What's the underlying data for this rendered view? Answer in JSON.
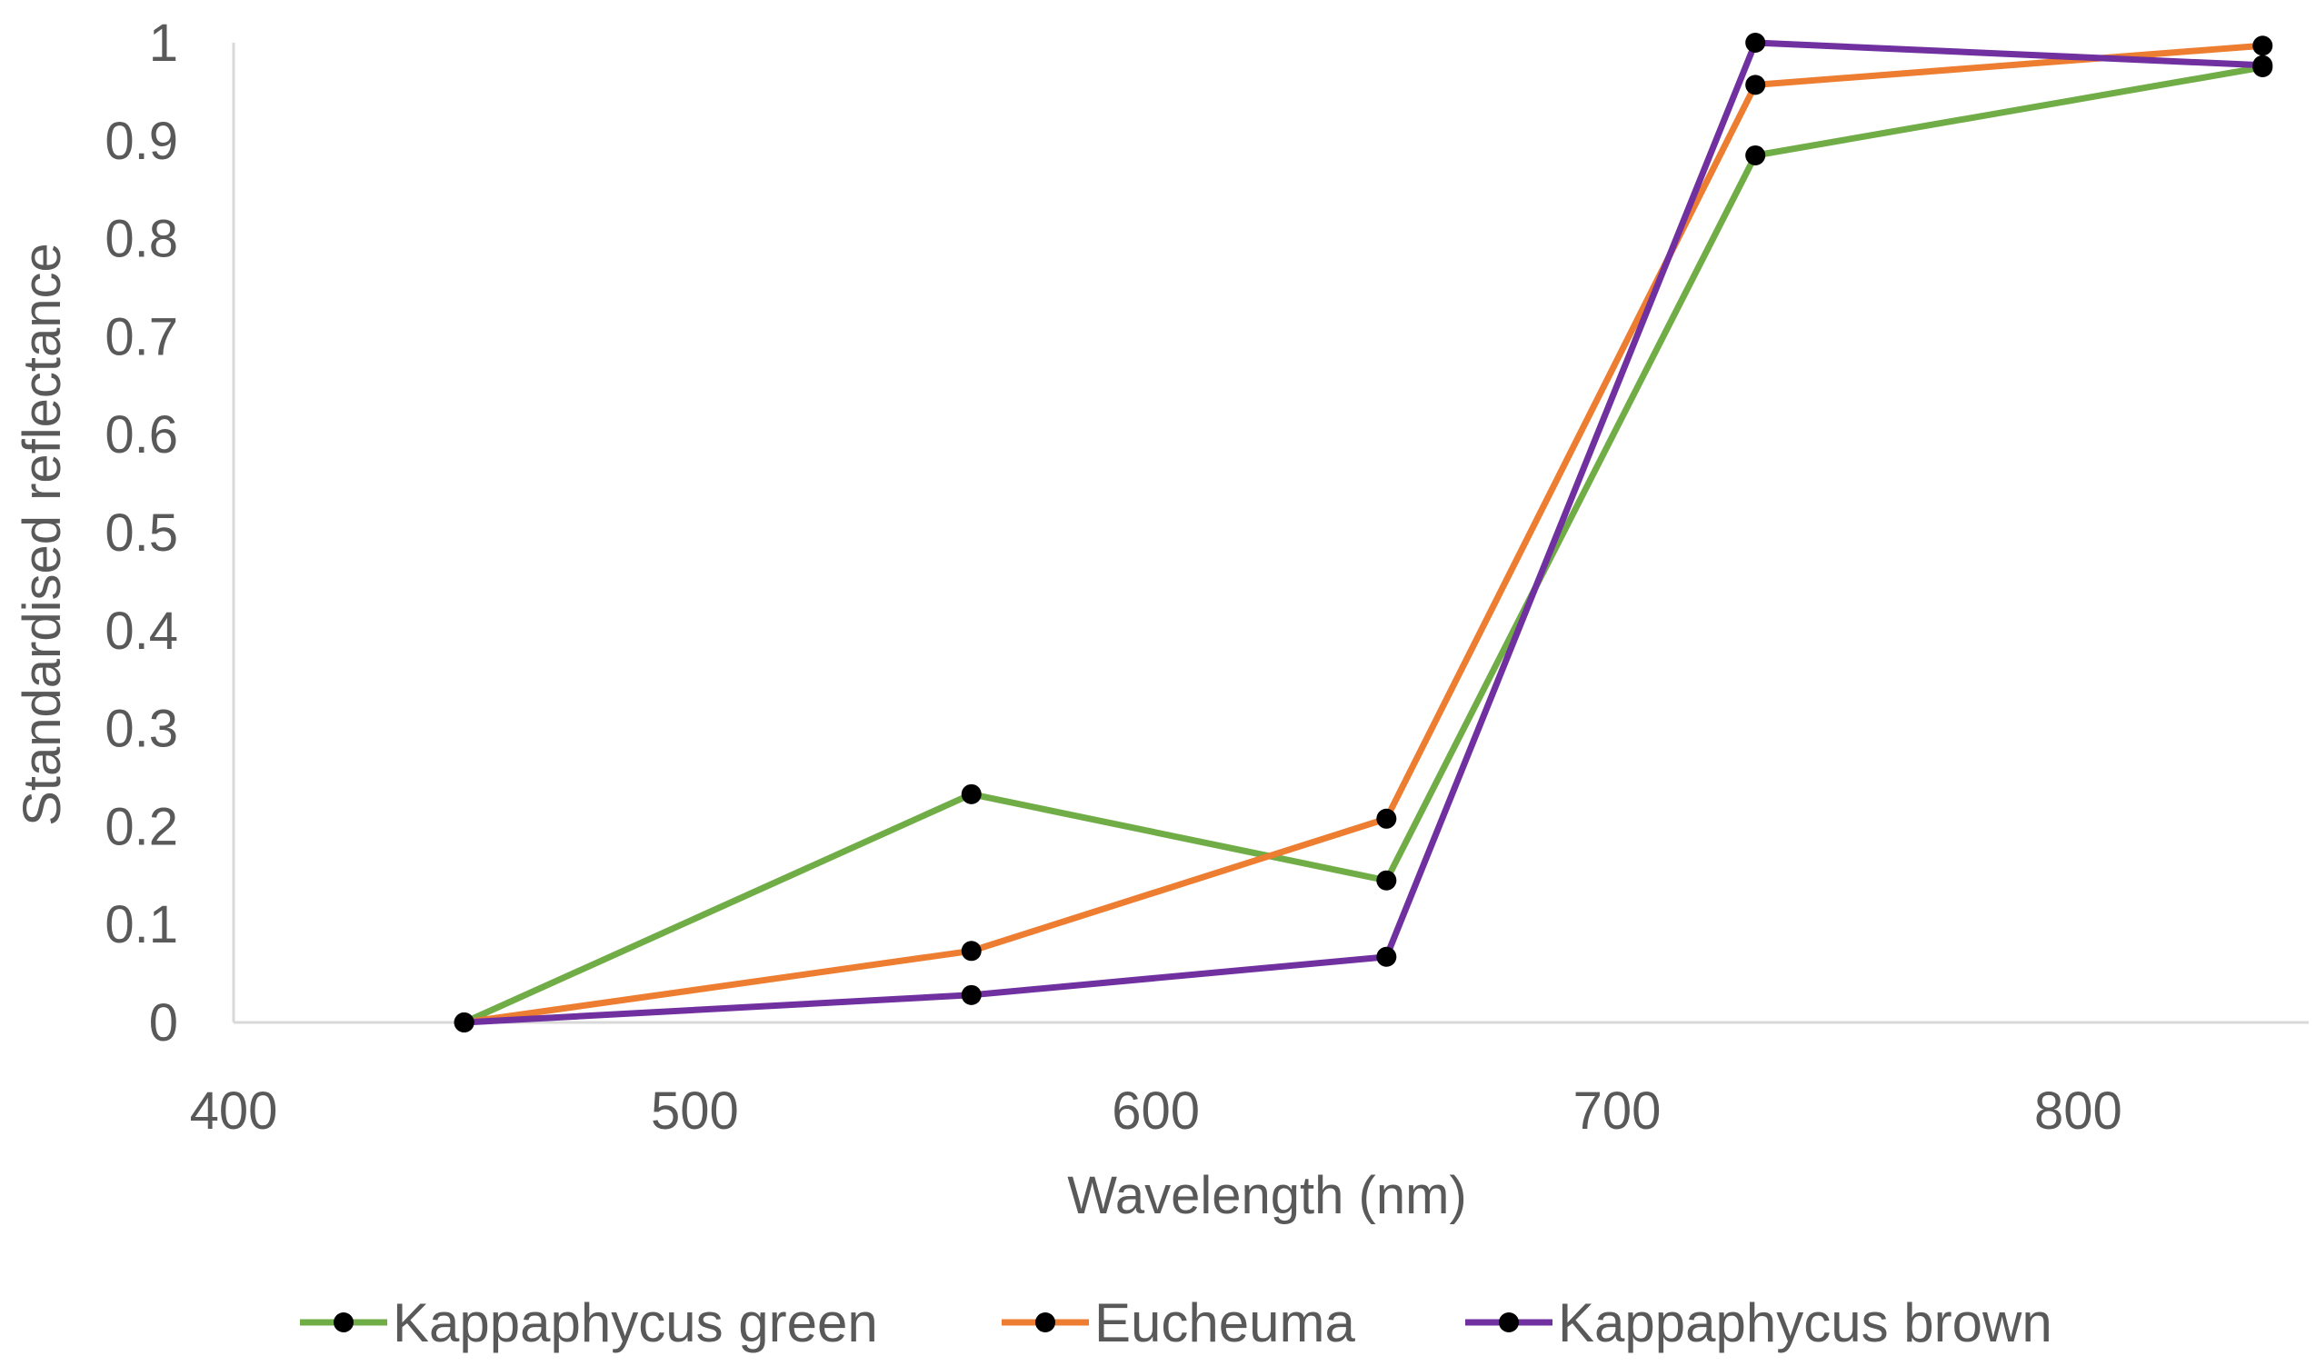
{
  "chart_data": {
    "type": "line",
    "title": "",
    "xlabel": "Wavelength (nm)",
    "ylabel": "Standardised reflectance",
    "xlim": [
      400,
      850
    ],
    "ylim": [
      0,
      1
    ],
    "x_ticks": [
      400,
      500,
      600,
      700,
      800
    ],
    "y_ticks": [
      0,
      0.1,
      0.2,
      0.3,
      0.4,
      0.5,
      0.6,
      0.7,
      0.8,
      0.9,
      1
    ],
    "y_tick_labels": [
      "0",
      "0.1",
      "0.2",
      "0.3",
      "0.4",
      "0.5",
      "0.6",
      "0.7",
      "0.8",
      "0.9",
      "1"
    ],
    "grid": false,
    "legend_position": "bottom",
    "marker_color": "#000000",
    "axis_color": "#d9d9d9",
    "series": [
      {
        "name": "Kappaphycus green",
        "color": "#70ad47",
        "x": [
          450,
          560,
          650,
          730,
          840
        ],
        "y": [
          0,
          0.233,
          0.145,
          0.885,
          0.975
        ]
      },
      {
        "name": "Eucheuma",
        "color": "#ed7d31",
        "x": [
          450,
          560,
          650,
          730,
          840
        ],
        "y": [
          0,
          0.073,
          0.208,
          0.957,
          0.997
        ]
      },
      {
        "name": "Kappaphycus brown",
        "color": "#7030a0",
        "x": [
          450,
          560,
          650,
          730,
          840
        ],
        "y": [
          0,
          0.028,
          0.067,
          1.0,
          0.977
        ]
      }
    ]
  }
}
